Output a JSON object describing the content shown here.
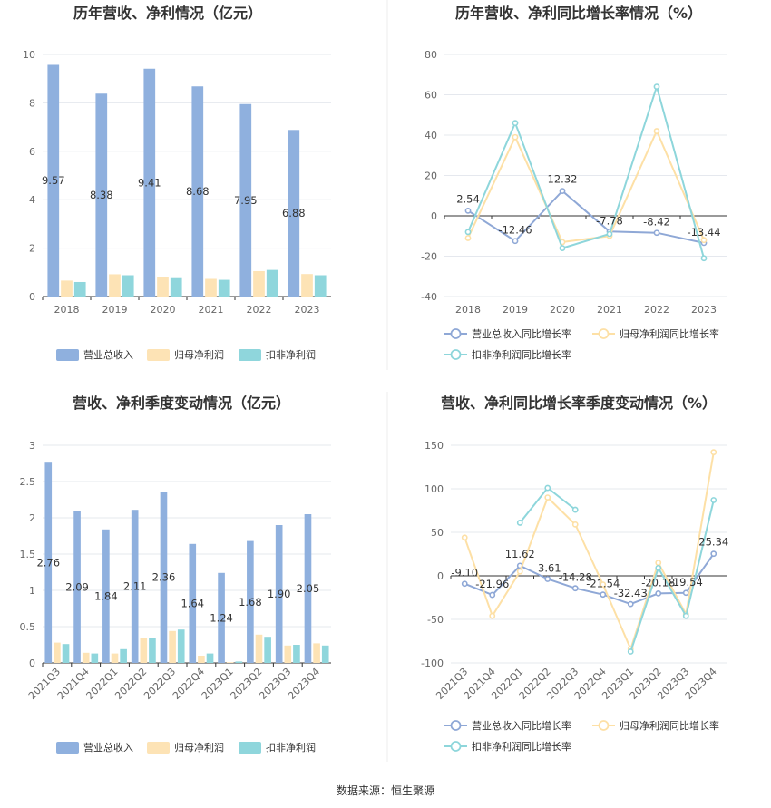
{
  "colors": {
    "revenue": "#8fb0de",
    "parent_profit": "#fde3b5",
    "deducted_profit": "#8fd6dc",
    "revenue_line": "#8fa8d6",
    "parent_line": "#fde0a6",
    "deducted_line": "#8ed6db",
    "grid": "#e5e8ee",
    "axis": "#aaaaaa",
    "divider": "#eeeeee"
  },
  "source_text": "数据来源：恒生聚源",
  "chart_data": [
    {
      "type": "bar",
      "title": "历年营收、净利情况（亿元）",
      "categories": [
        "2018",
        "2019",
        "2020",
        "2021",
        "2022",
        "2023"
      ],
      "ylim": [
        0,
        10
      ],
      "yticks": [
        0,
        2,
        4,
        6,
        8,
        10
      ],
      "ytick_labels": [
        "0",
        "2",
        "4",
        "6",
        "8",
        "10"
      ],
      "series": [
        {
          "name": "营业总收入",
          "values": [
            9.57,
            8.38,
            9.41,
            8.68,
            7.95,
            6.88
          ],
          "labels": [
            "9.57",
            "8.38",
            "9.41",
            "8.68",
            "7.95",
            "6.88"
          ]
        },
        {
          "name": "归母净利润",
          "values": [
            0.66,
            0.92,
            0.8,
            0.73,
            1.05,
            0.93
          ]
        },
        {
          "name": "扣非净利润",
          "values": [
            0.6,
            0.88,
            0.76,
            0.69,
            1.1,
            0.88
          ]
        }
      ],
      "legend": "bottom",
      "grid": true
    },
    {
      "type": "line",
      "title": "历年营收、净利同比增长率情况（%）",
      "categories": [
        "2018",
        "2019",
        "2020",
        "2021",
        "2022",
        "2023"
      ],
      "ylim": [
        -40,
        80
      ],
      "yticks": [
        -40,
        -20,
        0,
        20,
        40,
        60,
        80
      ],
      "ytick_labels": [
        "-40",
        "-20",
        "0",
        "20",
        "40",
        "60",
        "80"
      ],
      "series": [
        {
          "name": "营业总收入同比增长率",
          "values": [
            2.54,
            -12.46,
            12.32,
            -7.78,
            -8.42,
            -13.44
          ],
          "labels": [
            "2.54",
            "-12.46",
            "12.32",
            "-7.78",
            "-8.42",
            "-13.44"
          ]
        },
        {
          "name": "归母净利润同比增长率",
          "values": [
            -11,
            39,
            -13,
            -10,
            42,
            -12
          ]
        },
        {
          "name": "扣非净利润同比增长率",
          "values": [
            -8,
            46,
            -16,
            -9,
            64,
            -21
          ]
        }
      ],
      "legend": "bottom",
      "grid": true
    },
    {
      "type": "bar",
      "title": "营收、净利季度变动情况（亿元）",
      "categories": [
        "2021Q3",
        "2021Q4",
        "2022Q1",
        "2022Q2",
        "2022Q3",
        "2022Q4",
        "2023Q1",
        "2023Q2",
        "2023Q3",
        "2023Q4"
      ],
      "ylim": [
        0,
        3
      ],
      "yticks": [
        0,
        0.5,
        1,
        1.5,
        2,
        2.5,
        3
      ],
      "ytick_labels": [
        "0",
        "0.5",
        "1",
        "1.5",
        "2",
        "2.5",
        "3"
      ],
      "series": [
        {
          "name": "营业总收入",
          "values": [
            2.76,
            2.09,
            1.84,
            2.11,
            2.36,
            1.64,
            1.24,
            1.68,
            1.9,
            2.05
          ],
          "labels": [
            "2.76",
            "2.09",
            "1.84",
            "2.11",
            "2.36",
            "1.64",
            "1.24",
            "1.68",
            "1.90",
            "2.05"
          ]
        },
        {
          "name": "归母净利润",
          "values": [
            0.28,
            0.14,
            0.13,
            0.34,
            0.44,
            0.1,
            0.01,
            0.39,
            0.24,
            0.27
          ]
        },
        {
          "name": "扣非净利润",
          "values": [
            0.26,
            0.13,
            0.19,
            0.34,
            0.46,
            0.13,
            0.02,
            0.36,
            0.25,
            0.24
          ]
        }
      ],
      "legend": "bottom",
      "grid": true
    },
    {
      "type": "line",
      "title": "营收、净利同比增长率季度变动情况（%）",
      "categories": [
        "2021Q3",
        "2021Q4",
        "2022Q1",
        "2022Q2",
        "2022Q3",
        "2022Q4",
        "2023Q1",
        "2023Q2",
        "2023Q3",
        "2023Q4"
      ],
      "ylim": [
        -100,
        150
      ],
      "yticks": [
        -100,
        -50,
        0,
        50,
        100,
        150
      ],
      "ytick_labels": [
        "-100",
        "-50",
        "0",
        "50",
        "100",
        "150"
      ],
      "series": [
        {
          "name": "营业总收入同比增长率",
          "values": [
            -9.1,
            -21.96,
            11.62,
            -3.61,
            -14.28,
            -21.54,
            -32.43,
            -20.18,
            -19.54,
            25.34
          ],
          "labels": [
            "-9.10",
            "-21.96",
            "11.62",
            "-3.61",
            "-14.28",
            "-21.54",
            "-32.43",
            "-20.18",
            "-19.54",
            "25.34"
          ]
        },
        {
          "name": "归母净利润同比增长率",
          "values": [
            44,
            -46,
            5,
            90,
            59,
            -10,
            -84,
            15,
            -44,
            142
          ]
        },
        {
          "name": "扣非净利润同比增长率",
          "values": [
            null,
            null,
            61,
            101,
            76,
            null,
            -87,
            9,
            -46,
            87
          ]
        }
      ],
      "legend": "bottom",
      "grid": true
    }
  ]
}
